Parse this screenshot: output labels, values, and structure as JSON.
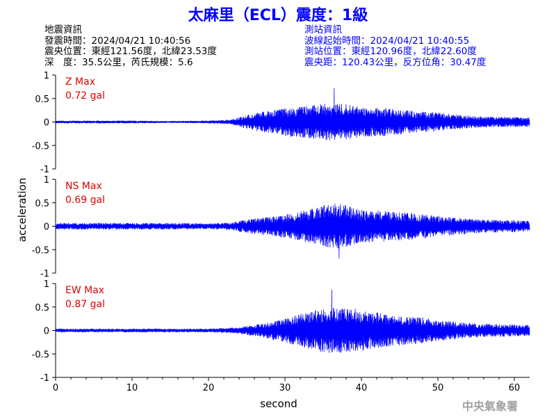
{
  "title": "太麻里（ECL）震度：1級",
  "earthquake_info": {
    "heading": "地震資訊",
    "origin_time": "發震時間：2024/04/21 10:40:56",
    "epicenter": "震央位置：東經121.56度，北緯23.53度",
    "depth_magnitude": "深　度：35.5公里，芮氏規模：5.6"
  },
  "station_info": {
    "heading": "測站資訊",
    "wave_start_time": "波線起始時間：2024/04/21 10:40:55",
    "station_location": "測站位置：東經120.96度，北緯22.60度",
    "epicentral_distance": "震央距：120.43公里，反方位角：30.47度"
  },
  "watermark": "中央氣象署",
  "colors": {
    "title": "#0000ff",
    "trace": "#0000ff",
    "max_label": "#e00000",
    "station_text": "#0000ff"
  },
  "chart_data": {
    "type": "line",
    "xlabel": "second",
    "ylabel": "acceleration",
    "xlim": [
      0,
      62
    ],
    "x_ticks": [
      "0",
      "10",
      "20",
      "30",
      "40",
      "50",
      "60"
    ],
    "y_ticks": [
      "1",
      "0.5",
      "0",
      "-0.5",
      "-1"
    ],
    "ylim": [
      -1,
      1
    ],
    "grid": false,
    "panels": [
      {
        "component": "Z",
        "max_label": "Z Max",
        "max_value": "0.72 gal",
        "envelope": {
          "x": [
            0,
            10,
            15,
            20,
            23,
            25,
            27,
            30,
            33,
            36,
            38,
            40,
            43,
            46,
            50,
            55,
            62
          ],
          "amp": [
            0.03,
            0.03,
            0.02,
            0.03,
            0.05,
            0.15,
            0.22,
            0.3,
            0.35,
            0.4,
            0.38,
            0.32,
            0.3,
            0.25,
            0.2,
            0.12,
            0.1
          ]
        }
      },
      {
        "component": "NS",
        "max_label": "NS Max",
        "max_value": "0.69 gal",
        "envelope": {
          "x": [
            0,
            10,
            17,
            20,
            23,
            25,
            28,
            30,
            33,
            35,
            37,
            40,
            43,
            46,
            50,
            55,
            62
          ],
          "amp": [
            0.07,
            0.07,
            0.07,
            0.06,
            0.08,
            0.15,
            0.2,
            0.25,
            0.35,
            0.45,
            0.5,
            0.35,
            0.33,
            0.3,
            0.22,
            0.15,
            0.12
          ]
        }
      },
      {
        "component": "EW",
        "max_label": "EW Max",
        "max_value": "0.87 gal",
        "envelope": {
          "x": [
            0,
            10,
            15,
            20,
            24,
            27,
            30,
            33,
            36,
            38,
            40,
            43,
            46,
            48,
            50,
            55,
            62
          ],
          "amp": [
            0.04,
            0.04,
            0.04,
            0.04,
            0.07,
            0.15,
            0.25,
            0.4,
            0.5,
            0.48,
            0.45,
            0.35,
            0.3,
            0.28,
            0.22,
            0.15,
            0.12
          ]
        }
      }
    ]
  }
}
